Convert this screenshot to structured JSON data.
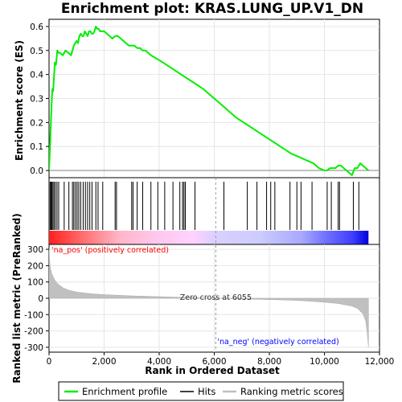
{
  "chart_data": {
    "type": "line",
    "title": "Enrichment plot: KRAS.LUNG_UP.V1_DN",
    "xlabel": "Rank in Ordered Dataset",
    "ylabel_top": "Enrichment score (ES)",
    "ylabel_bottom": "Ranked list metric (PreRanked)",
    "x_ticks": [
      "0",
      "2,000",
      "4,000",
      "6,000",
      "8,000",
      "10,000",
      "12,000"
    ],
    "x_tick_values": [
      0,
      2000,
      4000,
      6000,
      8000,
      10000,
      12000
    ],
    "es_ticks": [
      "0.0",
      "0.1",
      "0.2",
      "0.3",
      "0.4",
      "0.5",
      "0.6"
    ],
    "es_tick_values": [
      0.0,
      0.1,
      0.2,
      0.3,
      0.4,
      0.5,
      0.6
    ],
    "metric_ticks": [
      "300",
      "200",
      "100",
      "0",
      "-100",
      "-200",
      "-300"
    ],
    "metric_tick_values": [
      300,
      200,
      100,
      0,
      -100,
      -200,
      -300
    ],
    "xlim": [
      0,
      12000
    ],
    "es_ylim": [
      -0.03,
      0.63
    ],
    "metric_ylim": [
      -330,
      330
    ],
    "n_genes": 11600,
    "zero_cross_rank": 6055,
    "annotations": {
      "zero_cross": "Zero cross at 6055",
      "pos": "'na_pos' (positively correlated)",
      "neg": "'na_neg' (negatively correlated)"
    },
    "legend": {
      "enrichment": "Enrichment profile",
      "hits": "Hits",
      "ranking": "Ranking metric scores"
    },
    "colors": {
      "enrichment_line": "#00ee00",
      "hits": "#000000",
      "metric_fill": "#c0c0c0",
      "pos_label": "#ff0000",
      "neg_label": "#0000ff"
    },
    "enrichment_profile": {
      "x": [
        0,
        30,
        60,
        90,
        120,
        150,
        180,
        210,
        250,
        300,
        350,
        400,
        500,
        600,
        700,
        800,
        850,
        900,
        950,
        1000,
        1050,
        1100,
        1150,
        1200,
        1250,
        1300,
        1350,
        1400,
        1450,
        1500,
        1550,
        1600,
        1650,
        1700,
        1750,
        1800,
        1850,
        1900,
        2000,
        2100,
        2200,
        2300,
        2400,
        2500,
        2600,
        2700,
        2800,
        2900,
        3000,
        3100,
        3200,
        3300,
        3400,
        3500,
        3700,
        4000,
        4400,
        4800,
        5200,
        5600,
        6000,
        6400,
        6800,
        7200,
        7600,
        8000,
        8400,
        8800,
        9000,
        9200,
        9400,
        9600,
        9800,
        10000,
        10100,
        10200,
        10300,
        10400,
        10500,
        10600,
        10800,
        11000,
        11100,
        11200,
        11300,
        11400,
        11500,
        11600
      ],
      "es": [
        0.0,
        0.08,
        0.18,
        0.27,
        0.34,
        0.33,
        0.39,
        0.45,
        0.44,
        0.5,
        0.49,
        0.49,
        0.48,
        0.5,
        0.49,
        0.48,
        0.5,
        0.52,
        0.53,
        0.54,
        0.53,
        0.56,
        0.57,
        0.56,
        0.56,
        0.58,
        0.57,
        0.56,
        0.58,
        0.58,
        0.57,
        0.57,
        0.58,
        0.6,
        0.59,
        0.59,
        0.58,
        0.58,
        0.58,
        0.57,
        0.56,
        0.55,
        0.56,
        0.56,
        0.55,
        0.54,
        0.53,
        0.52,
        0.52,
        0.52,
        0.51,
        0.51,
        0.5,
        0.5,
        0.48,
        0.46,
        0.43,
        0.4,
        0.37,
        0.34,
        0.3,
        0.26,
        0.22,
        0.19,
        0.16,
        0.13,
        0.1,
        0.07,
        0.06,
        0.05,
        0.04,
        0.03,
        0.01,
        0.0,
        0.0,
        0.01,
        0.01,
        0.01,
        0.02,
        0.02,
        0.0,
        -0.02,
        0.01,
        0.01,
        0.03,
        0.02,
        0.01,
        0.0
      ]
    },
    "hit_ranks": [
      40,
      70,
      100,
      140,
      180,
      230,
      290,
      350,
      550,
      720,
      850,
      900,
      960,
      1020,
      1080,
      1150,
      1240,
      1320,
      1400,
      1480,
      1560,
      1700,
      1780,
      1950,
      2400,
      2450,
      3000,
      3050,
      3200,
      3400,
      3700,
      3950,
      4200,
      4500,
      4750,
      4850,
      4900,
      4950,
      5300,
      6350,
      7200,
      7550,
      7900,
      8050,
      8200,
      8750,
      9000,
      9150,
      9550,
      10100,
      10250,
      10500,
      10550,
      11050,
      11250
    ],
    "metric_profile": {
      "x": [
        0,
        20,
        50,
        100,
        200,
        300,
        500,
        700,
        1000,
        1500,
        2000,
        3000,
        4000,
        5000,
        6055,
        7000,
        8000,
        9000,
        9500,
        10000,
        10500,
        11000,
        11200,
        11400,
        11500,
        11560,
        11600
      ],
      "y": [
        300,
        230,
        185,
        150,
        115,
        90,
        65,
        50,
        38,
        28,
        22,
        15,
        10,
        5,
        0,
        -4,
        -8,
        -13,
        -18,
        -24,
        -32,
        -48,
        -62,
        -95,
        -140,
        -220,
        -300
      ]
    },
    "heatmap_stops": [
      {
        "pos": 0.0,
        "color": "#ff2020"
      },
      {
        "pos": 0.1,
        "color": "#ff6a6a"
      },
      {
        "pos": 0.22,
        "color": "#ffb6c8"
      },
      {
        "pos": 0.34,
        "color": "#ffc8ee"
      },
      {
        "pos": 0.45,
        "color": "#ffd2ff"
      },
      {
        "pos": 0.52,
        "color": "#d9d0ff"
      },
      {
        "pos": 0.66,
        "color": "#ccccff"
      },
      {
        "pos": 0.79,
        "color": "#a8a8ff"
      },
      {
        "pos": 0.87,
        "color": "#6f6fff"
      },
      {
        "pos": 0.95,
        "color": "#3f3fff"
      },
      {
        "pos": 1.0,
        "color": "#0000dd"
      }
    ]
  }
}
